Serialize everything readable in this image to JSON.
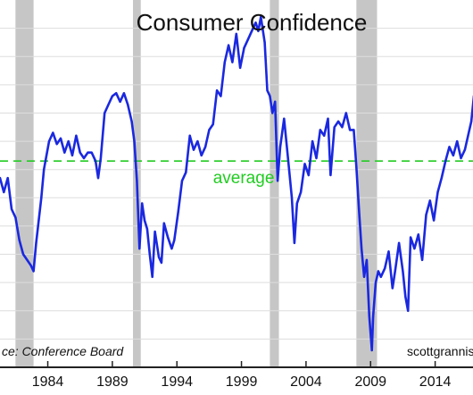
{
  "chart_data": {
    "type": "line",
    "title": "Consumer Confidence",
    "xlabel": "",
    "ylabel": "",
    "xlim": [
      1980.3,
      2017.0
    ],
    "ylim": [
      20,
      150
    ],
    "x_ticks": [
      "1984",
      "1989",
      "1994",
      "1999",
      "2004",
      "2009",
      "2014"
    ],
    "grid": true,
    "source": "ce:  Conference Board",
    "credit": "scottgrannis",
    "colors": {
      "line": "#1a28e0",
      "average": "#22cc22",
      "recession": "#c6c6c6",
      "grid": "#dddddd",
      "border": "#222222"
    },
    "average": {
      "value": 93,
      "label": "average"
    },
    "recessions": [
      [
        1981.5,
        1982.9
      ],
      [
        1990.6,
        1991.2
      ],
      [
        2001.2,
        2001.9
      ],
      [
        2007.9,
        2009.5
      ]
    ],
    "series": [
      {
        "name": "",
        "points": [
          [
            1980.3,
            87
          ],
          [
            1980.6,
            82
          ],
          [
            1980.9,
            87
          ],
          [
            1981.2,
            76
          ],
          [
            1981.5,
            73
          ],
          [
            1981.8,
            65
          ],
          [
            1982.1,
            60
          ],
          [
            1982.4,
            58
          ],
          [
            1982.7,
            56
          ],
          [
            1982.9,
            54
          ],
          [
            1983.1,
            64
          ],
          [
            1983.3,
            72
          ],
          [
            1983.5,
            80
          ],
          [
            1983.7,
            90
          ],
          [
            1983.9,
            95
          ],
          [
            1984.1,
            100
          ],
          [
            1984.4,
            103
          ],
          [
            1984.7,
            99
          ],
          [
            1985.0,
            101
          ],
          [
            1985.3,
            96
          ],
          [
            1985.6,
            100
          ],
          [
            1985.9,
            95
          ],
          [
            1986.2,
            102
          ],
          [
            1986.5,
            96
          ],
          [
            1986.8,
            94
          ],
          [
            1987.1,
            96
          ],
          [
            1987.4,
            96
          ],
          [
            1987.7,
            93
          ],
          [
            1987.9,
            87
          ],
          [
            1988.1,
            94
          ],
          [
            1988.4,
            110
          ],
          [
            1988.7,
            113
          ],
          [
            1989.0,
            116
          ],
          [
            1989.3,
            117
          ],
          [
            1989.6,
            114
          ],
          [
            1989.9,
            117
          ],
          [
            1990.2,
            113
          ],
          [
            1990.5,
            107
          ],
          [
            1990.7,
            100
          ],
          [
            1990.9,
            86
          ],
          [
            1991.1,
            62
          ],
          [
            1991.3,
            78
          ],
          [
            1991.5,
            72
          ],
          [
            1991.7,
            69
          ],
          [
            1991.9,
            60
          ],
          [
            1992.1,
            52
          ],
          [
            1992.3,
            68
          ],
          [
            1992.6,
            59
          ],
          [
            1992.8,
            57
          ],
          [
            1993.0,
            71
          ],
          [
            1993.3,
            66
          ],
          [
            1993.6,
            62
          ],
          [
            1993.8,
            65
          ],
          [
            1994.1,
            75
          ],
          [
            1994.4,
            86
          ],
          [
            1994.7,
            89
          ],
          [
            1995.0,
            102
          ],
          [
            1995.3,
            97
          ],
          [
            1995.6,
            100
          ],
          [
            1995.9,
            95
          ],
          [
            1996.2,
            98
          ],
          [
            1996.5,
            104
          ],
          [
            1996.8,
            106
          ],
          [
            1997.1,
            118
          ],
          [
            1997.4,
            116
          ],
          [
            1997.7,
            128
          ],
          [
            1998.0,
            134
          ],
          [
            1998.3,
            128
          ],
          [
            1998.6,
            138
          ],
          [
            1998.9,
            126
          ],
          [
            1999.2,
            133
          ],
          [
            1999.5,
            136
          ],
          [
            1999.8,
            139
          ],
          [
            2000.1,
            142
          ],
          [
            2000.3,
            139
          ],
          [
            2000.5,
            144
          ],
          [
            2000.8,
            135
          ],
          [
            2001.0,
            118
          ],
          [
            2001.2,
            116
          ],
          [
            2001.4,
            110
          ],
          [
            2001.6,
            114
          ],
          [
            2001.8,
            86
          ],
          [
            2002.0,
            98
          ],
          [
            2002.3,
            108
          ],
          [
            2002.6,
            94
          ],
          [
            2002.9,
            80
          ],
          [
            2003.1,
            64
          ],
          [
            2003.3,
            78
          ],
          [
            2003.6,
            82
          ],
          [
            2003.9,
            92
          ],
          [
            2004.2,
            88
          ],
          [
            2004.5,
            100
          ],
          [
            2004.8,
            94
          ],
          [
            2005.1,
            104
          ],
          [
            2005.4,
            102
          ],
          [
            2005.7,
            108
          ],
          [
            2005.9,
            88
          ],
          [
            2006.2,
            105
          ],
          [
            2006.5,
            107
          ],
          [
            2006.8,
            105
          ],
          [
            2007.1,
            110
          ],
          [
            2007.4,
            104
          ],
          [
            2007.7,
            104
          ],
          [
            2007.9,
            91
          ],
          [
            2008.1,
            76
          ],
          [
            2008.3,
            62
          ],
          [
            2008.5,
            52
          ],
          [
            2008.7,
            58
          ],
          [
            2008.9,
            38
          ],
          [
            2009.1,
            26
          ],
          [
            2009.2,
            38
          ],
          [
            2009.4,
            50
          ],
          [
            2009.6,
            54
          ],
          [
            2009.8,
            52
          ],
          [
            2010.1,
            55
          ],
          [
            2010.4,
            61
          ],
          [
            2010.7,
            48
          ],
          [
            2010.9,
            54
          ],
          [
            2011.2,
            64
          ],
          [
            2011.5,
            54
          ],
          [
            2011.7,
            45
          ],
          [
            2011.9,
            40
          ],
          [
            2012.1,
            66
          ],
          [
            2012.4,
            62
          ],
          [
            2012.7,
            67
          ],
          [
            2013.0,
            58
          ],
          [
            2013.3,
            74
          ],
          [
            2013.6,
            79
          ],
          [
            2013.9,
            72
          ],
          [
            2014.2,
            82
          ],
          [
            2014.5,
            87
          ],
          [
            2014.8,
            93
          ],
          [
            2015.1,
            98
          ],
          [
            2015.4,
            95
          ],
          [
            2015.7,
            100
          ],
          [
            2016.0,
            94
          ],
          [
            2016.3,
            97
          ],
          [
            2016.6,
            103
          ],
          [
            2016.8,
            107
          ],
          [
            2017.0,
            116
          ]
        ]
      }
    ]
  }
}
